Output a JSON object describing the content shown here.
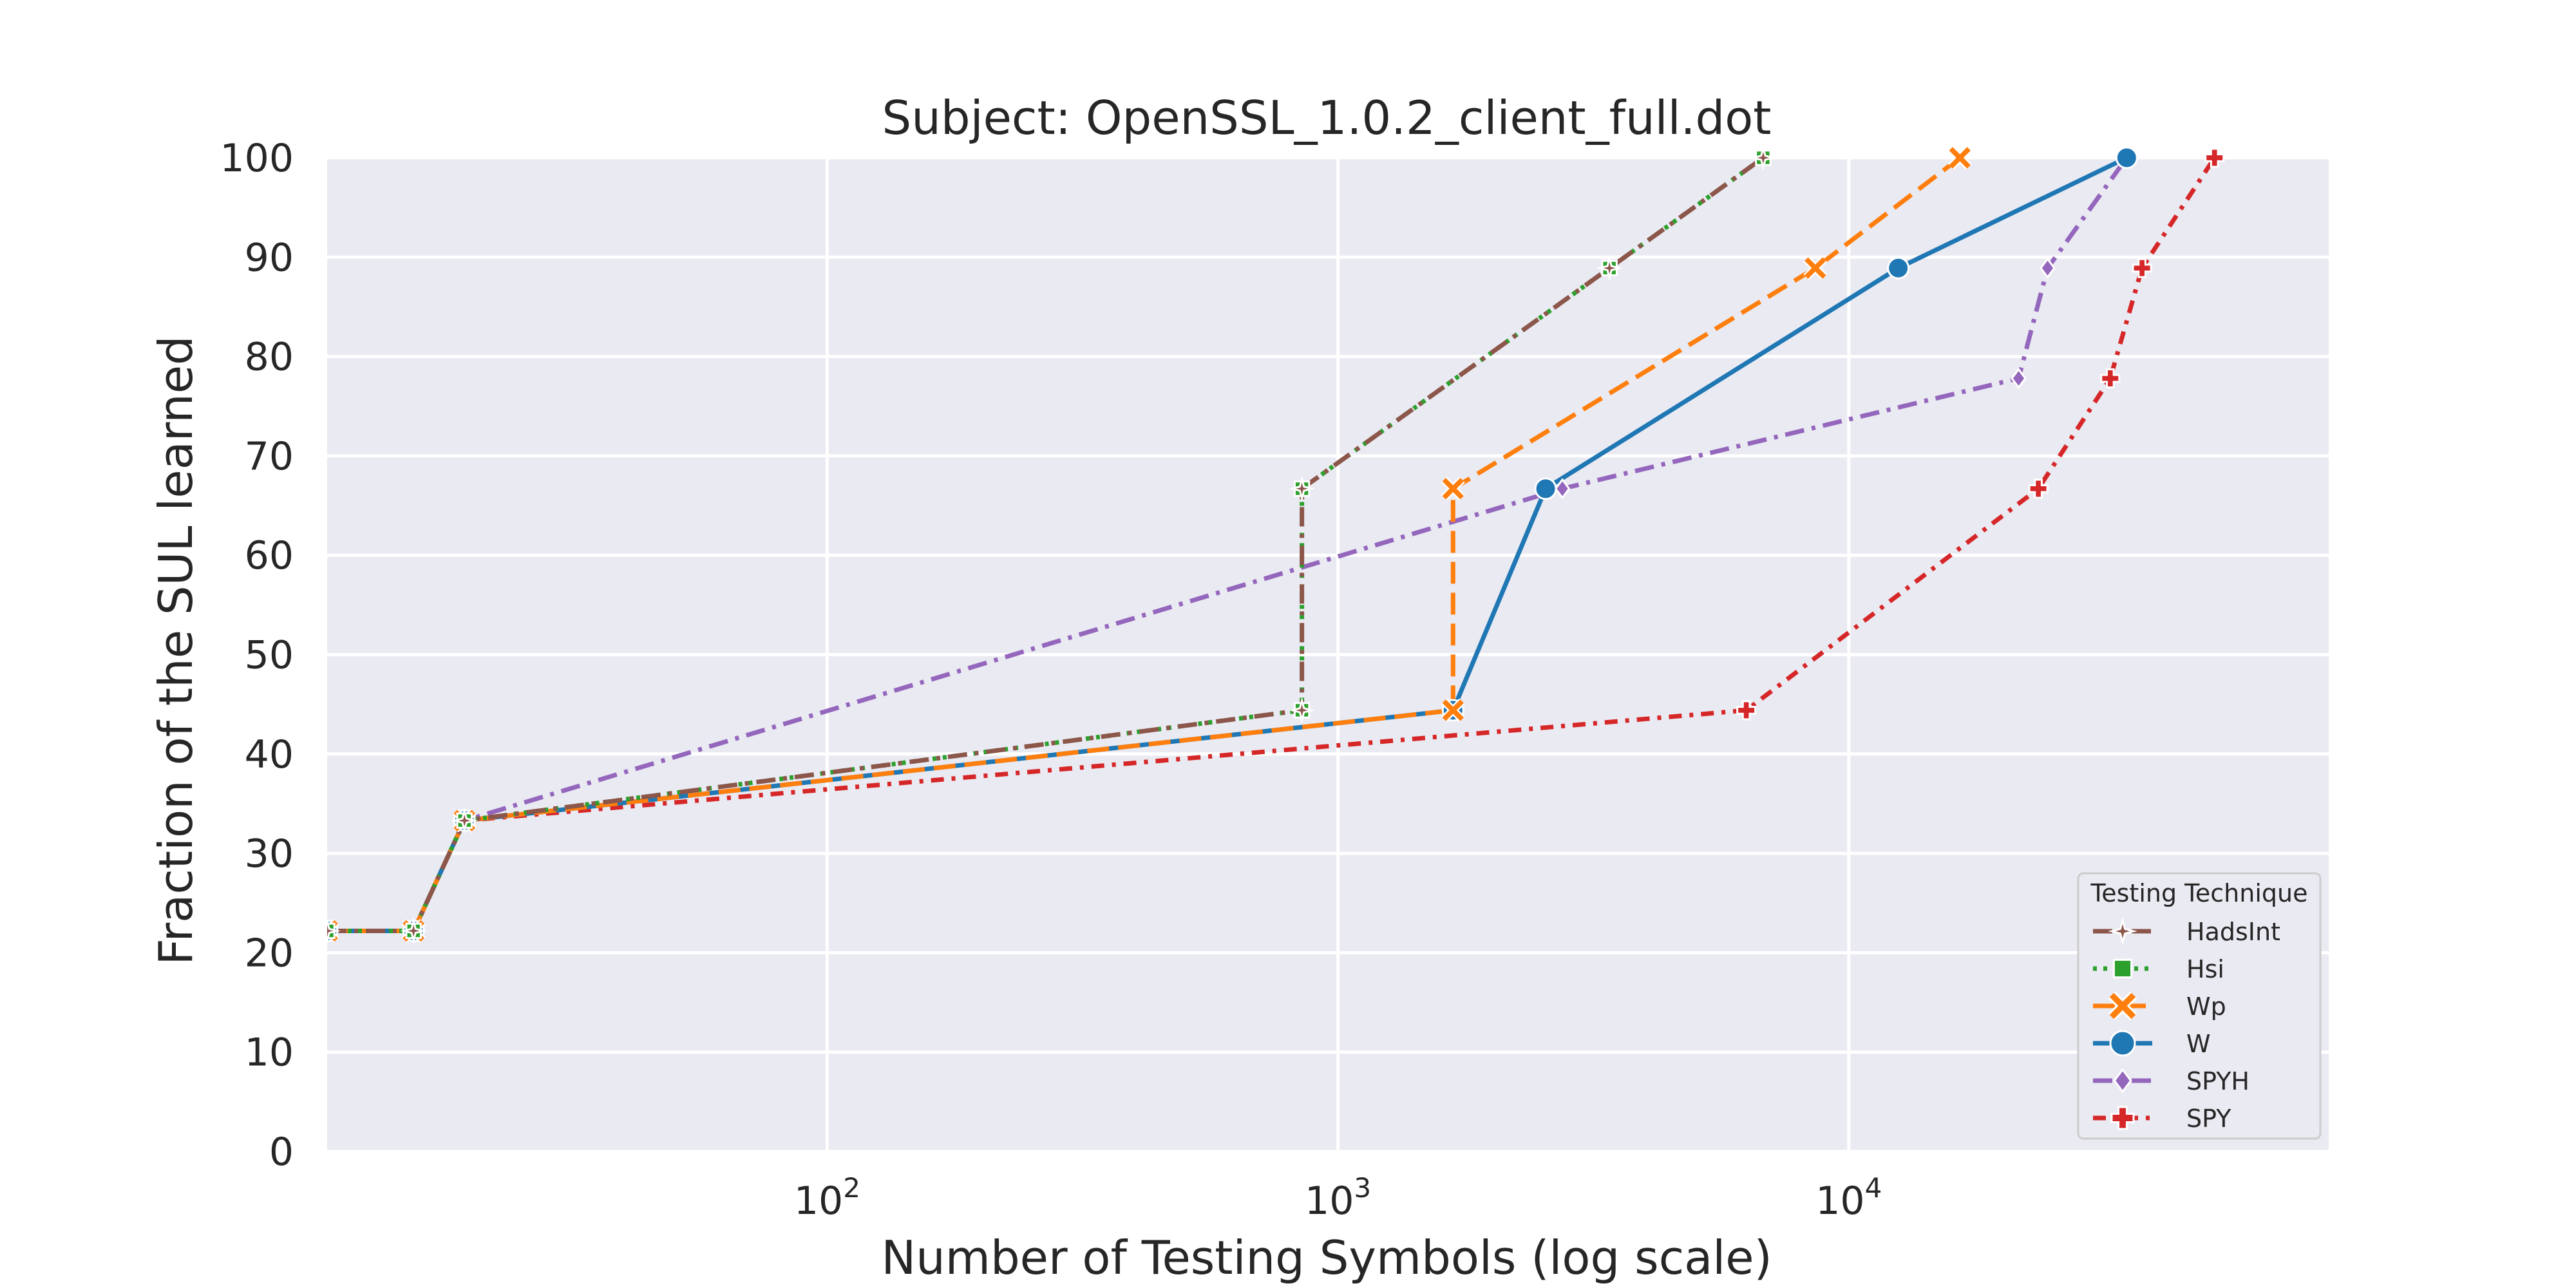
{
  "chart_data": {
    "type": "line",
    "title": "Subject: OpenSSL_1.0.2_client_full.dot",
    "xlabel": "Number of Testing Symbols (log scale)",
    "ylabel": "Fraction of the SUL learned",
    "xscale": "log",
    "xlim": [
      10.5,
      87000
    ],
    "ylim": [
      0,
      100
    ],
    "xticks": [
      {
        "value": 100,
        "base": "10",
        "exp": "2"
      },
      {
        "value": 1000,
        "base": "10",
        "exp": "3"
      },
      {
        "value": 10000,
        "base": "10",
        "exp": "4"
      }
    ],
    "yticks": [
      0,
      10,
      20,
      30,
      40,
      50,
      60,
      70,
      80,
      90,
      100
    ],
    "grid": true,
    "background": "#eaeaf2",
    "legend": {
      "title": "Testing Technique",
      "placement": "lower-right"
    },
    "series": [
      {
        "name": "HadsInt",
        "color": "#8c564b",
        "dash": "dashdot",
        "marker": "star",
        "x": [
          10.5,
          15.5,
          19.5,
          850,
          850,
          3400,
          6800
        ],
        "y": [
          22.2,
          22.2,
          33.3,
          44.4,
          66.7,
          88.9,
          100
        ]
      },
      {
        "name": "Hsi",
        "color": "#2ca02c",
        "dash": "dot",
        "marker": "square",
        "x": [
          10.5,
          15.5,
          19.5,
          850,
          850,
          3400,
          6800
        ],
        "y": [
          22.2,
          22.2,
          33.3,
          44.4,
          66.7,
          88.9,
          100
        ]
      },
      {
        "name": "Wp",
        "color": "#ff7f0e",
        "dash": "dash",
        "marker": "x",
        "x": [
          10.5,
          15.5,
          19.5,
          1680,
          1680,
          8600,
          16500
        ],
        "y": [
          22.2,
          22.2,
          33.3,
          44.4,
          66.7,
          88.9,
          100
        ]
      },
      {
        "name": "W",
        "color": "#1f77b4",
        "dash": "solid",
        "marker": "circle",
        "x": [
          10.5,
          15.5,
          19.5,
          1680,
          2550,
          12500,
          35000
        ],
        "y": [
          22.2,
          22.2,
          33.3,
          44.4,
          66.7,
          88.9,
          100
        ]
      },
      {
        "name": "SPYH",
        "color": "#9467bd",
        "dash": "dashdot",
        "marker": "diamond",
        "x": [
          10.5,
          15.5,
          19.5,
          2750,
          21500,
          24500,
          35000
        ],
        "y": [
          22.2,
          22.2,
          33.3,
          66.7,
          77.8,
          88.9,
          100
        ]
      },
      {
        "name": "SPY",
        "color": "#d62728",
        "dash": "dashdot2",
        "marker": "plus",
        "x": [
          10.5,
          15.5,
          19.5,
          6300,
          23500,
          32500,
          37500,
          52000
        ],
        "y": [
          22.2,
          22.2,
          33.3,
          44.4,
          66.7,
          77.8,
          88.9,
          100
        ]
      }
    ]
  }
}
